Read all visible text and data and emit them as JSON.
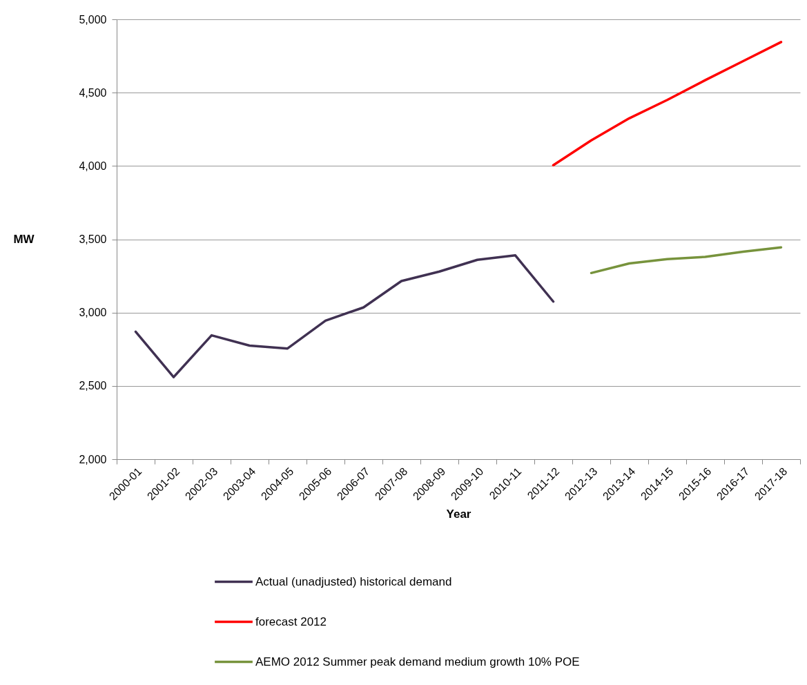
{
  "chart_data": {
    "type": "line",
    "xlabel": "Year",
    "ylabel": "MW",
    "categories": [
      "2000-01",
      "2001-02",
      "2002-03",
      "2003-04",
      "2004-05",
      "2005-06",
      "2006-07",
      "2007-08",
      "2008-09",
      "2009-10",
      "2010-11",
      "2011-12",
      "2012-13",
      "2013-14",
      "2014-15",
      "2015-16",
      "2016-17",
      "2017-18"
    ],
    "ylim": [
      2000,
      5000
    ],
    "yticks": [
      {
        "value": 2000,
        "label": "2,000"
      },
      {
        "value": 2500,
        "label": "2,500"
      },
      {
        "value": 3000,
        "label": "3,000"
      },
      {
        "value": 3500,
        "label": "3,500"
      },
      {
        "value": 4000,
        "label": "4,000"
      },
      {
        "value": 4500,
        "label": "4,500"
      },
      {
        "value": 5000,
        "label": "5,000"
      }
    ],
    "grid": "y",
    "legend": "bottom",
    "line_style": "solid",
    "series": [
      {
        "name": "Actual (unadjusted) historical demand",
        "color": "#403152",
        "values": [
          2870,
          2560,
          2845,
          2775,
          2755,
          2945,
          3035,
          3215,
          3280,
          3360,
          3390,
          3075,
          null,
          null,
          null,
          null,
          null,
          null
        ]
      },
      {
        "name": "forecast 2012",
        "color": "#ff0000",
        "values": [
          null,
          null,
          null,
          null,
          null,
          null,
          null,
          null,
          null,
          null,
          null,
          4005,
          4175,
          4325,
          4450,
          4585,
          4715,
          4845
        ]
      },
      {
        "name": "AEMO 2012 Summer peak demand medium growth 10% POE",
        "color": "#77933c",
        "values": [
          null,
          null,
          null,
          null,
          null,
          null,
          null,
          null,
          null,
          null,
          null,
          null,
          3270,
          3335,
          3365,
          3380,
          3415,
          3445
        ]
      }
    ]
  }
}
